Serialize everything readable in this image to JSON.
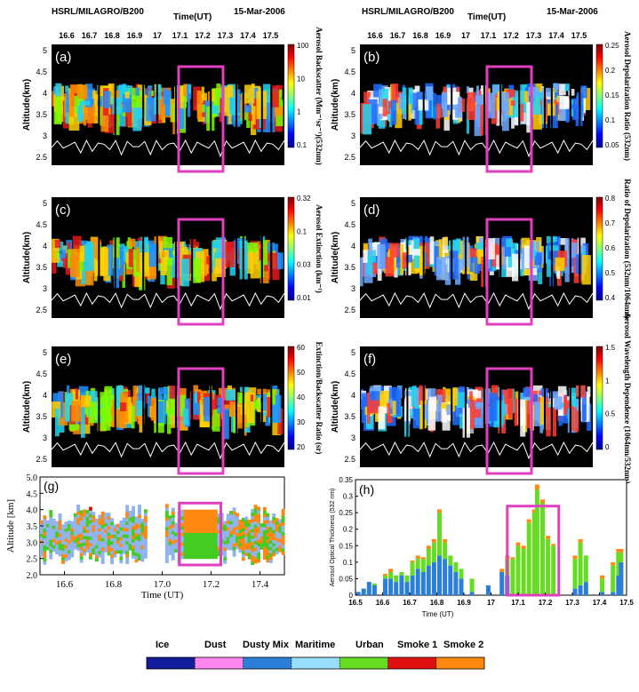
{
  "header": {
    "left_instrument": "HSRL/MILAGRO/B200",
    "left_time_label": "Time(UT)",
    "left_date": "15-Mar-2006",
    "right_instrument": "HSRL/MILAGRO/B200",
    "right_time_label": "Time(UT)",
    "right_date": "15-Mar-2006",
    "time_ticks": [
      "16.6",
      "16.7",
      "16.8",
      "16.9",
      "17",
      "17.1",
      "17.2",
      "17.3",
      "17.4",
      "17.5"
    ]
  },
  "panels": [
    {
      "letter": "(a)",
      "ylabel": "Altitude(km)",
      "cbar_label": "Aerosol Backscatter (Mm⁻¹sr⁻¹)(532nm)",
      "cbar_ticks": [
        "100",
        "10",
        "1",
        "0.1"
      ]
    },
    {
      "letter": "(b)",
      "ylabel": "Altitude(km)",
      "cbar_label": "Aerosol Depolarization Ratio (532nm)",
      "cbar_ticks": [
        "0.25",
        "0.2",
        "0.15",
        "0.1",
        "0.05"
      ]
    },
    {
      "letter": "(c)",
      "ylabel": "Altitude(km)",
      "cbar_label": "Aerosol Extinction (km⁻¹)",
      "cbar_ticks": [
        "0.32",
        "0.1",
        "0.03",
        "0.01"
      ]
    },
    {
      "letter": "(d)",
      "ylabel": "Altitude(km)",
      "cbar_label": "Ratio of Depolarization (532nm/1064nm)",
      "cbar_ticks": [
        "0.8",
        "0.7",
        "0.6",
        "0.5",
        "0.4"
      ]
    },
    {
      "letter": "(e)",
      "ylabel": "Altitude(km)",
      "cbar_label": "Extinction/Backscatter Ratio (sr)",
      "cbar_ticks": [
        "60",
        "50",
        "40",
        "30",
        "20"
      ]
    },
    {
      "letter": "(f)",
      "ylabel": "Altitude(km)",
      "cbar_label": "Aerosol Wavelength Dependence (1064nm/532nm)",
      "cbar_ticks": [
        "1.5",
        "1",
        "0.5",
        "0"
      ]
    }
  ],
  "alt_ticks": [
    "5",
    "4.5",
    "4",
    "3.5",
    "3",
    "2.5"
  ],
  "chart_data": [
    {
      "type": "heatmap",
      "panel": "(g)",
      "ylabel": "Altitude [km]",
      "xlabel": "Time (UT)",
      "x_ticks": [
        "16.6",
        "16.8",
        "17.0",
        "17.2",
        "17.4"
      ],
      "y_ticks": [
        "2.0",
        "2.5",
        "3.0",
        "3.5",
        "4.0",
        "4.5",
        "5.0"
      ],
      "xlim": [
        16.5,
        17.5
      ],
      "ylim": [
        2.0,
        5.0
      ]
    },
    {
      "type": "bar",
      "panel": "(h)",
      "ylabel": "Aerosol Optical Thickness (532 nm)",
      "xlabel": "Time (UT)",
      "x_ticks": [
        "16.5",
        "16.6",
        "16.7",
        "16.8",
        "16.9",
        "17",
        "17.1",
        "17.2",
        "17.3",
        "17.4",
        "17.5"
      ],
      "y_ticks": [
        "0",
        "0.05",
        "0.1",
        "0.15",
        "0.2",
        "0.25",
        "0.3",
        "0.35"
      ],
      "xlim": [
        16.5,
        17.5
      ],
      "ylim": [
        0,
        0.35
      ],
      "series_colors": {
        "Dusty Mix": "#2b7fd8",
        "Urban": "#66dd22",
        "Smoke 2": "#ff8811"
      },
      "bars": [
        {
          "x": 16.51,
          "Dusty Mix": 0.01,
          "Urban": 0.0,
          "Smoke 2": 0.0
        },
        {
          "x": 16.53,
          "Dusty Mix": 0.02,
          "Urban": 0.0,
          "Smoke 2": 0.0
        },
        {
          "x": 16.55,
          "Dusty Mix": 0.04,
          "Urban": 0.0,
          "Smoke 2": 0.0
        },
        {
          "x": 16.57,
          "Dusty Mix": 0.03,
          "Urban": 0.005,
          "Smoke 2": 0.0
        },
        {
          "x": 16.61,
          "Dusty Mix": 0.05,
          "Urban": 0.01,
          "Smoke 2": 0.005
        },
        {
          "x": 16.63,
          "Dusty Mix": 0.05,
          "Urban": 0.02,
          "Smoke 2": 0.01
        },
        {
          "x": 16.65,
          "Dusty Mix": 0.04,
          "Urban": 0.02,
          "Smoke 2": 0.0
        },
        {
          "x": 16.67,
          "Dusty Mix": 0.06,
          "Urban": 0.01,
          "Smoke 2": 0.0
        },
        {
          "x": 16.69,
          "Dusty Mix": 0.04,
          "Urban": 0.02,
          "Smoke 2": 0.0
        },
        {
          "x": 16.71,
          "Dusty Mix": 0.06,
          "Urban": 0.04,
          "Smoke 2": 0.005
        },
        {
          "x": 16.73,
          "Dusty Mix": 0.08,
          "Urban": 0.03,
          "Smoke 2": 0.01
        },
        {
          "x": 16.75,
          "Dusty Mix": 0.07,
          "Urban": 0.04,
          "Smoke 2": 0.005
        },
        {
          "x": 16.77,
          "Dusty Mix": 0.09,
          "Urban": 0.05,
          "Smoke 2": 0.01
        },
        {
          "x": 16.79,
          "Dusty Mix": 0.1,
          "Urban": 0.06,
          "Smoke 2": 0.01
        },
        {
          "x": 16.81,
          "Dusty Mix": 0.12,
          "Urban": 0.13,
          "Smoke 2": 0.01
        },
        {
          "x": 16.83,
          "Dusty Mix": 0.11,
          "Urban": 0.05,
          "Smoke 2": 0.01
        },
        {
          "x": 16.85,
          "Dusty Mix": 0.09,
          "Urban": 0.03,
          "Smoke 2": 0.0
        },
        {
          "x": 16.87,
          "Dusty Mix": 0.07,
          "Urban": 0.03,
          "Smoke 2": 0.0
        },
        {
          "x": 16.89,
          "Dusty Mix": 0.05,
          "Urban": 0.03,
          "Smoke 2": 0.0
        },
        {
          "x": 16.93,
          "Dusty Mix": 0.01,
          "Urban": 0.04,
          "Smoke 2": 0.0
        },
        {
          "x": 16.99,
          "Dusty Mix": 0.03,
          "Urban": 0.0,
          "Smoke 2": 0.0
        },
        {
          "x": 17.04,
          "Dusty Mix": 0.07,
          "Urban": 0.0,
          "Smoke 2": 0.01
        },
        {
          "x": 17.06,
          "Dusty Mix": 0.06,
          "Urban": 0.05,
          "Smoke 2": 0.01
        },
        {
          "x": 17.08,
          "Dusty Mix": 0.0,
          "Urban": 0.11,
          "Smoke 2": 0.005
        },
        {
          "x": 17.1,
          "Dusty Mix": 0.0,
          "Urban": 0.15,
          "Smoke 2": 0.01
        },
        {
          "x": 17.12,
          "Dusty Mix": 0.0,
          "Urban": 0.14,
          "Smoke 2": 0.01
        },
        {
          "x": 17.14,
          "Dusty Mix": 0.0,
          "Urban": 0.22,
          "Smoke 2": 0.01
        },
        {
          "x": 17.16,
          "Dusty Mix": 0.0,
          "Urban": 0.25,
          "Smoke 2": 0.01
        },
        {
          "x": 17.17,
          "Dusty Mix": 0.0,
          "Urban": 0.32,
          "Smoke 2": 0.015
        },
        {
          "x": 17.19,
          "Dusty Mix": 0.0,
          "Urban": 0.28,
          "Smoke 2": 0.01
        },
        {
          "x": 17.21,
          "Dusty Mix": 0.0,
          "Urban": 0.17,
          "Smoke 2": 0.01
        },
        {
          "x": 17.23,
          "Dusty Mix": 0.0,
          "Urban": 0.15,
          "Smoke 2": 0.005
        },
        {
          "x": 17.31,
          "Dusty Mix": 0.02,
          "Urban": 0.09,
          "Smoke 2": 0.01
        },
        {
          "x": 17.33,
          "Dusty Mix": 0.03,
          "Urban": 0.13,
          "Smoke 2": 0.01
        },
        {
          "x": 17.35,
          "Dusty Mix": 0.04,
          "Urban": 0.08,
          "Smoke 2": 0.0
        },
        {
          "x": 17.41,
          "Dusty Mix": 0.01,
          "Urban": 0.04,
          "Smoke 2": 0.01
        },
        {
          "x": 17.45,
          "Dusty Mix": 0.01,
          "Urban": 0.08,
          "Smoke 2": 0.01
        },
        {
          "x": 17.47,
          "Dusty Mix": 0.06,
          "Urban": 0.07,
          "Smoke 2": 0.01
        },
        {
          "x": 17.48,
          "Dusty Mix": 0.1,
          "Urban": 0.03,
          "Smoke 2": 0.01
        }
      ]
    }
  ],
  "legend": {
    "items": [
      {
        "label": "Ice",
        "color": "#101c9a"
      },
      {
        "label": "Dust",
        "color": "#ff88ee"
      },
      {
        "label": "Dusty Mix",
        "color": "#2b7fd8"
      },
      {
        "label": "Maritime",
        "color": "#99ddff"
      },
      {
        "label": "Urban",
        "color": "#66dd22"
      },
      {
        "label": "Smoke 1",
        "color": "#e01010"
      },
      {
        "label": "Smoke 2",
        "color": "#ff8811"
      }
    ]
  },
  "highlight_color": "#e040c0"
}
